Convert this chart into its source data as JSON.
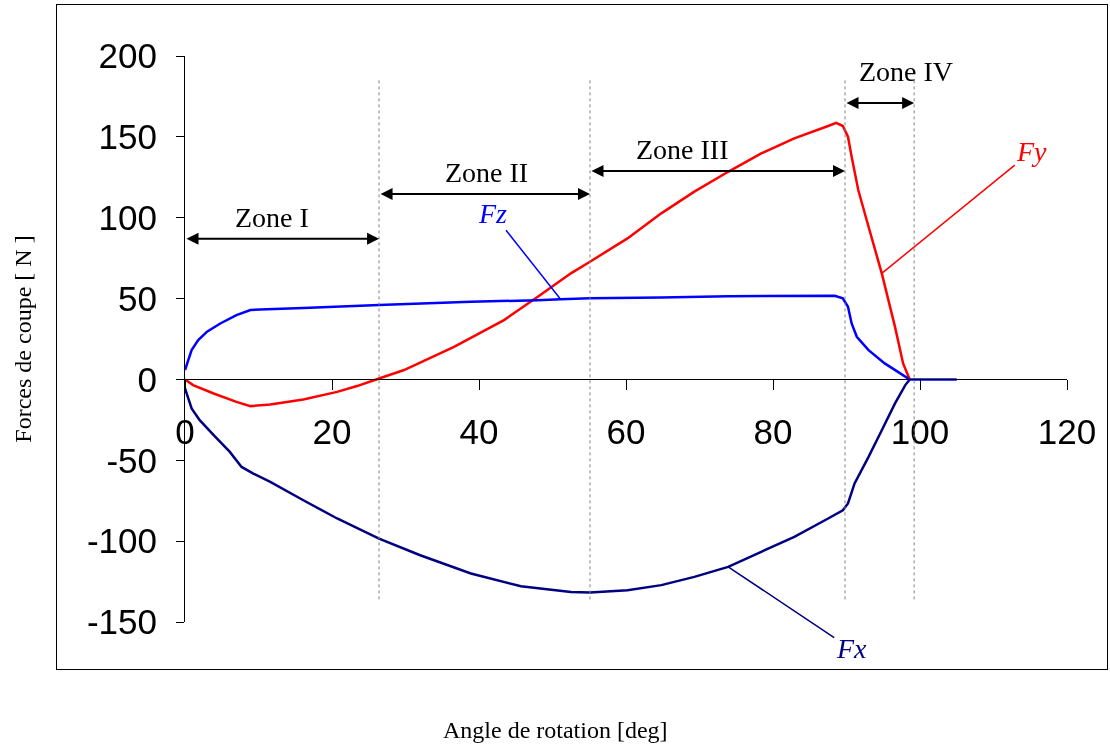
{
  "chart_data": {
    "type": "line",
    "xlabel": "Angle de rotation [deg]",
    "ylabel": "Forces de coupe [ N ]",
    "xlim": [
      0,
      120
    ],
    "xticks": [
      0,
      20,
      40,
      60,
      80,
      100,
      120
    ],
    "ylim": [
      -150,
      200
    ],
    "yticks": [
      -150,
      -100,
      -50,
      0,
      50,
      100,
      150,
      200
    ],
    "line_style": "solid",
    "series": [
      {
        "name": "Fx",
        "color": "#000080",
        "x": [
          0,
          0.9,
          2.0,
          3.9,
          6.1,
          7.7,
          9.3,
          11.6,
          16.1,
          20.7,
          26.4,
          32.0,
          38.9,
          45.7,
          52.5,
          55.1,
          60.2,
          64.8,
          69.3,
          73.9,
          78.4,
          82.9,
          87.5,
          89.5,
          90.2,
          91.1,
          93.0,
          94.8,
          96.6,
          98.0,
          98.6
        ],
        "values": [
          -5.6,
          -17.9,
          -25.2,
          -34.5,
          -44.8,
          -54.1,
          -58.2,
          -63.3,
          -74.7,
          -86.0,
          -98.4,
          -108.7,
          -120.0,
          -127.9,
          -131.4,
          -131.8,
          -130.3,
          -127.2,
          -122.1,
          -115.9,
          -106.6,
          -97.4,
          -86.0,
          -80.9,
          -76.7,
          -64.3,
          -47.9,
          -31.4,
          -14.8,
          -3.5,
          0
        ]
      },
      {
        "name": "Fy",
        "color": "#ff0000",
        "x": [
          0,
          1.1,
          3.9,
          7.0,
          8.9,
          11.6,
          16.1,
          20.7,
          23.4,
          26.4,
          29.8,
          36.6,
          43.4,
          48,
          52.5,
          55.1,
          60.2,
          64.8,
          69.3,
          73.9,
          78.4,
          82.9,
          87.5,
          88.6,
          89.5,
          90.2,
          90.7,
          91.6,
          93.0,
          94.8,
          96.6,
          97.7,
          98.6
        ],
        "values": [
          0,
          -3.5,
          -8.7,
          -13.9,
          -16.5,
          -15.5,
          -12.4,
          -7.7,
          -4.1,
          0.6,
          5.8,
          20.2,
          36.7,
          51.1,
          65.6,
          72.8,
          87.2,
          102.7,
          116.1,
          128.4,
          139.8,
          149.1,
          156.7,
          158.7,
          156.7,
          150.1,
          137.7,
          117.1,
          94.4,
          65.6,
          32.5,
          9.9,
          0
        ]
      },
      {
        "name": "Fz",
        "color": "#0000ff",
        "x": [
          0,
          0.9,
          1.8,
          3.0,
          4.8,
          7.0,
          8.9,
          10.2,
          16.1,
          26.4,
          38.9,
          48,
          51.1,
          55.1,
          64.8,
          73.9,
          88.4,
          89.5,
          90.2,
          90.7,
          91.4,
          93.0,
          95.2,
          97.0,
          98.6,
          105
        ],
        "values": [
          5.8,
          18.1,
          24.3,
          29.5,
          34.6,
          39.8,
          42.9,
          43.3,
          44.1,
          46,
          48,
          49,
          49.6,
          50.2,
          50.7,
          51.5,
          51.7,
          50.1,
          44.9,
          34.6,
          26.4,
          18.1,
          9.9,
          4.7,
          0,
          0
        ]
      }
    ],
    "ref_lines": [
      {
        "axis": "x",
        "value": 26.4,
        "color": "#808080",
        "line_style": "dotted"
      },
      {
        "axis": "x",
        "value": 55.1,
        "color": "#808080",
        "line_style": "dotted"
      },
      {
        "axis": "x",
        "value": 89.8,
        "color": "#808080",
        "line_style": "dotted"
      },
      {
        "axis": "x",
        "value": 99.2,
        "color": "#808080",
        "line_style": "dotted"
      }
    ],
    "annotations": [
      "Zone I",
      "Zone II",
      "Zone III",
      "Zone IV"
    ]
  }
}
